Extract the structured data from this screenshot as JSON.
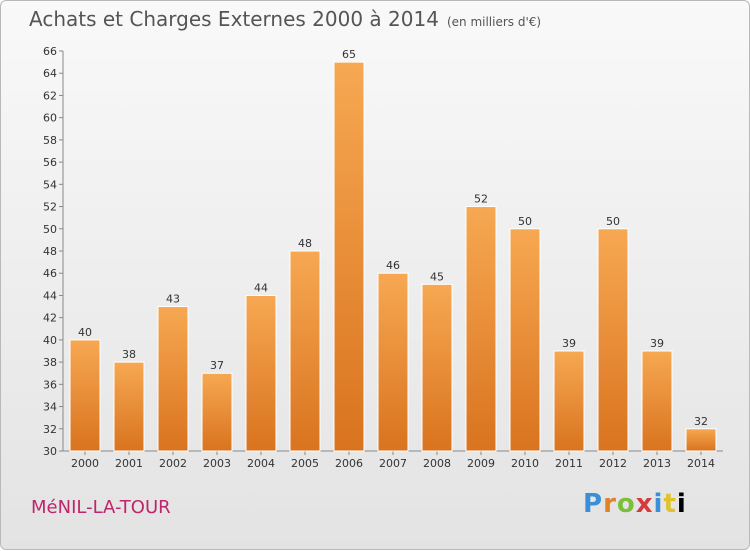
{
  "title": "Achats et Charges Externes 2000 à 2014",
  "unit": "(en milliers d'€)",
  "commune": "MéNIL-LA-TOUR",
  "logo": {
    "text": "Proxiti",
    "letters": [
      "P",
      "r",
      "o",
      "x",
      "i",
      "t",
      "i"
    ]
  },
  "colors": {
    "bar_top": "#f7a852",
    "bar_bottom": "#d9731f",
    "bar_edge": "#ffffff",
    "commune": "#c0256b"
  },
  "chart_data": {
    "type": "bar",
    "categories": [
      "2000",
      "2001",
      "2002",
      "2003",
      "2004",
      "2005",
      "2006",
      "2007",
      "2008",
      "2009",
      "2010",
      "2011",
      "2012",
      "2013",
      "2014"
    ],
    "values": [
      40,
      38,
      43,
      37,
      44,
      48,
      65,
      46,
      45,
      52,
      50,
      39,
      50,
      39,
      32
    ],
    "ylim": [
      30,
      66
    ],
    "yticks": [
      30,
      32,
      34,
      36,
      38,
      40,
      42,
      44,
      46,
      48,
      50,
      52,
      54,
      56,
      58,
      60,
      62,
      64,
      66
    ],
    "grid": false,
    "title": "Achats et Charges Externes 2000 à 2014",
    "xlabel": "",
    "ylabel": ""
  }
}
